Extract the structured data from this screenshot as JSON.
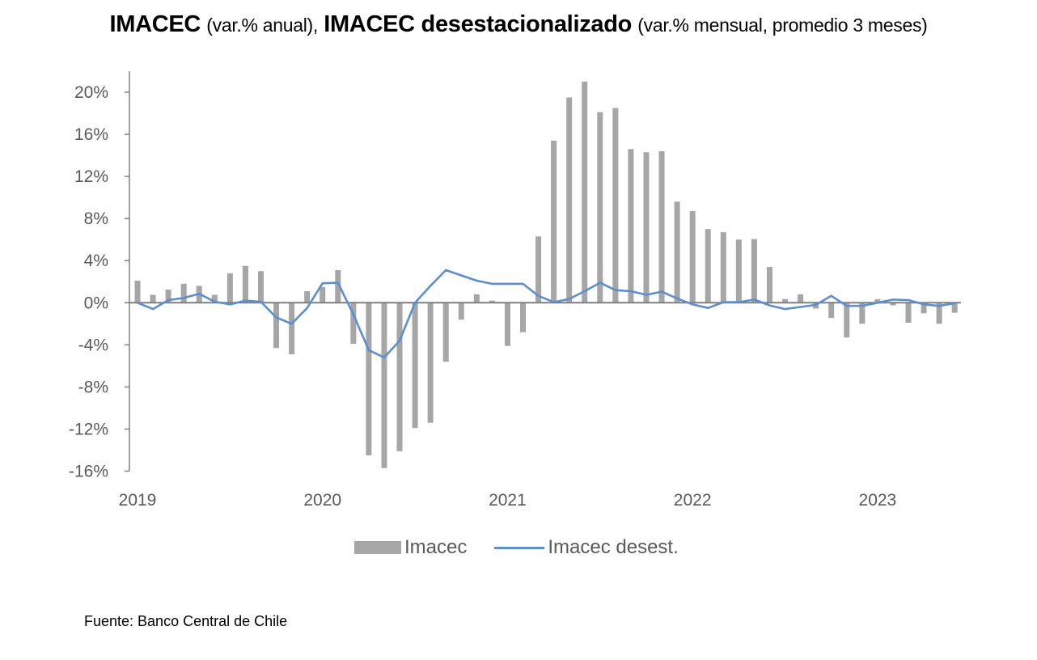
{
  "title": {
    "part1_bold": "IMACEC",
    "part1_sub": "(var.% anual),",
    "part2_bold": "IMACEC desestacionalizado",
    "part2_sub": "(var.% mensual, promedio 3 meses)"
  },
  "source": "Fuente: Banco Central de Chile",
  "colors": {
    "bars": "#a6a6a6",
    "line": "#5b8fd0",
    "axis": "#808080"
  },
  "chart_data": {
    "type": "bar+line",
    "title": "IMACEC (var.% anual), IMACEC desestacionalizado (var.% mensual, promedio 3 meses)",
    "xlabel": "",
    "ylabel": "",
    "ylim": [
      -16,
      20
    ],
    "yticks": [
      "20%",
      "16%",
      "12%",
      "8%",
      "4%",
      "0%",
      "-4%",
      "-8%",
      "-12%",
      "-16%"
    ],
    "ytick_values": [
      20,
      16,
      12,
      8,
      4,
      0,
      -4,
      -8,
      -12,
      -16
    ],
    "xtick_labels": [
      "2019",
      "2020",
      "2021",
      "2022",
      "2023"
    ],
    "xtick_month_index": [
      0,
      12,
      24,
      36,
      48
    ],
    "x": [
      "2019-01",
      "2019-02",
      "2019-03",
      "2019-04",
      "2019-05",
      "2019-06",
      "2019-07",
      "2019-08",
      "2019-09",
      "2019-10",
      "2019-11",
      "2019-12",
      "2020-01",
      "2020-02",
      "2020-03",
      "2020-04",
      "2020-05",
      "2020-06",
      "2020-07",
      "2020-08",
      "2020-09",
      "2020-10",
      "2020-11",
      "2020-12",
      "2021-01",
      "2021-02",
      "2021-03",
      "2021-04",
      "2021-05",
      "2021-06",
      "2021-07",
      "2021-08",
      "2021-09",
      "2021-10",
      "2021-11",
      "2021-12",
      "2022-01",
      "2022-02",
      "2022-03",
      "2022-04",
      "2022-05",
      "2022-06",
      "2022-07",
      "2022-08",
      "2022-09",
      "2022-10",
      "2022-11",
      "2022-12",
      "2023-01",
      "2023-02",
      "2023-03",
      "2023-04",
      "2023-05",
      "2023-06"
    ],
    "grid": false,
    "legend_position": "bottom-center",
    "series": [
      {
        "name": "Imacec",
        "type": "bar",
        "values": [
          2.1,
          0.75,
          1.25,
          1.8,
          1.6,
          0.75,
          2.8,
          3.5,
          3.0,
          -4.3,
          -4.9,
          1.1,
          1.5,
          3.1,
          -3.9,
          -14.5,
          -15.7,
          -14.1,
          -11.9,
          -11.4,
          -5.6,
          -1.6,
          0.8,
          0.2,
          -4.1,
          -2.8,
          6.3,
          15.4,
          19.5,
          21.0,
          18.1,
          18.5,
          14.6,
          14.3,
          14.4,
          9.6,
          8.7,
          7.0,
          6.7,
          6.0,
          6.05,
          3.4,
          0.35,
          0.8,
          -0.55,
          -1.45,
          -3.3,
          -2.0,
          0.33,
          -0.25,
          -1.9,
          -1.0,
          -2.0,
          -0.95
        ]
      },
      {
        "name": "Imacec desest.",
        "type": "line",
        "values": [
          0.0,
          -0.6,
          0.25,
          0.45,
          0.85,
          0.1,
          -0.15,
          0.2,
          0.1,
          -1.4,
          -2.0,
          -0.5,
          1.85,
          1.9,
          -1.1,
          -4.5,
          -5.2,
          -3.6,
          0.0,
          1.6,
          3.1,
          2.6,
          2.1,
          1.8,
          1.8,
          1.8,
          0.65,
          0.05,
          0.35,
          1.1,
          1.9,
          1.2,
          1.1,
          0.75,
          1.05,
          0.4,
          -0.15,
          -0.5,
          0.05,
          0.05,
          0.3,
          -0.25,
          -0.6,
          -0.4,
          -0.2,
          0.65,
          -0.3,
          -0.3,
          0.0,
          0.3,
          0.25,
          -0.15,
          -0.3,
          -0.05
        ]
      }
    ]
  },
  "legend": {
    "bar_label": "Imacec",
    "line_label": "Imacec desest."
  }
}
